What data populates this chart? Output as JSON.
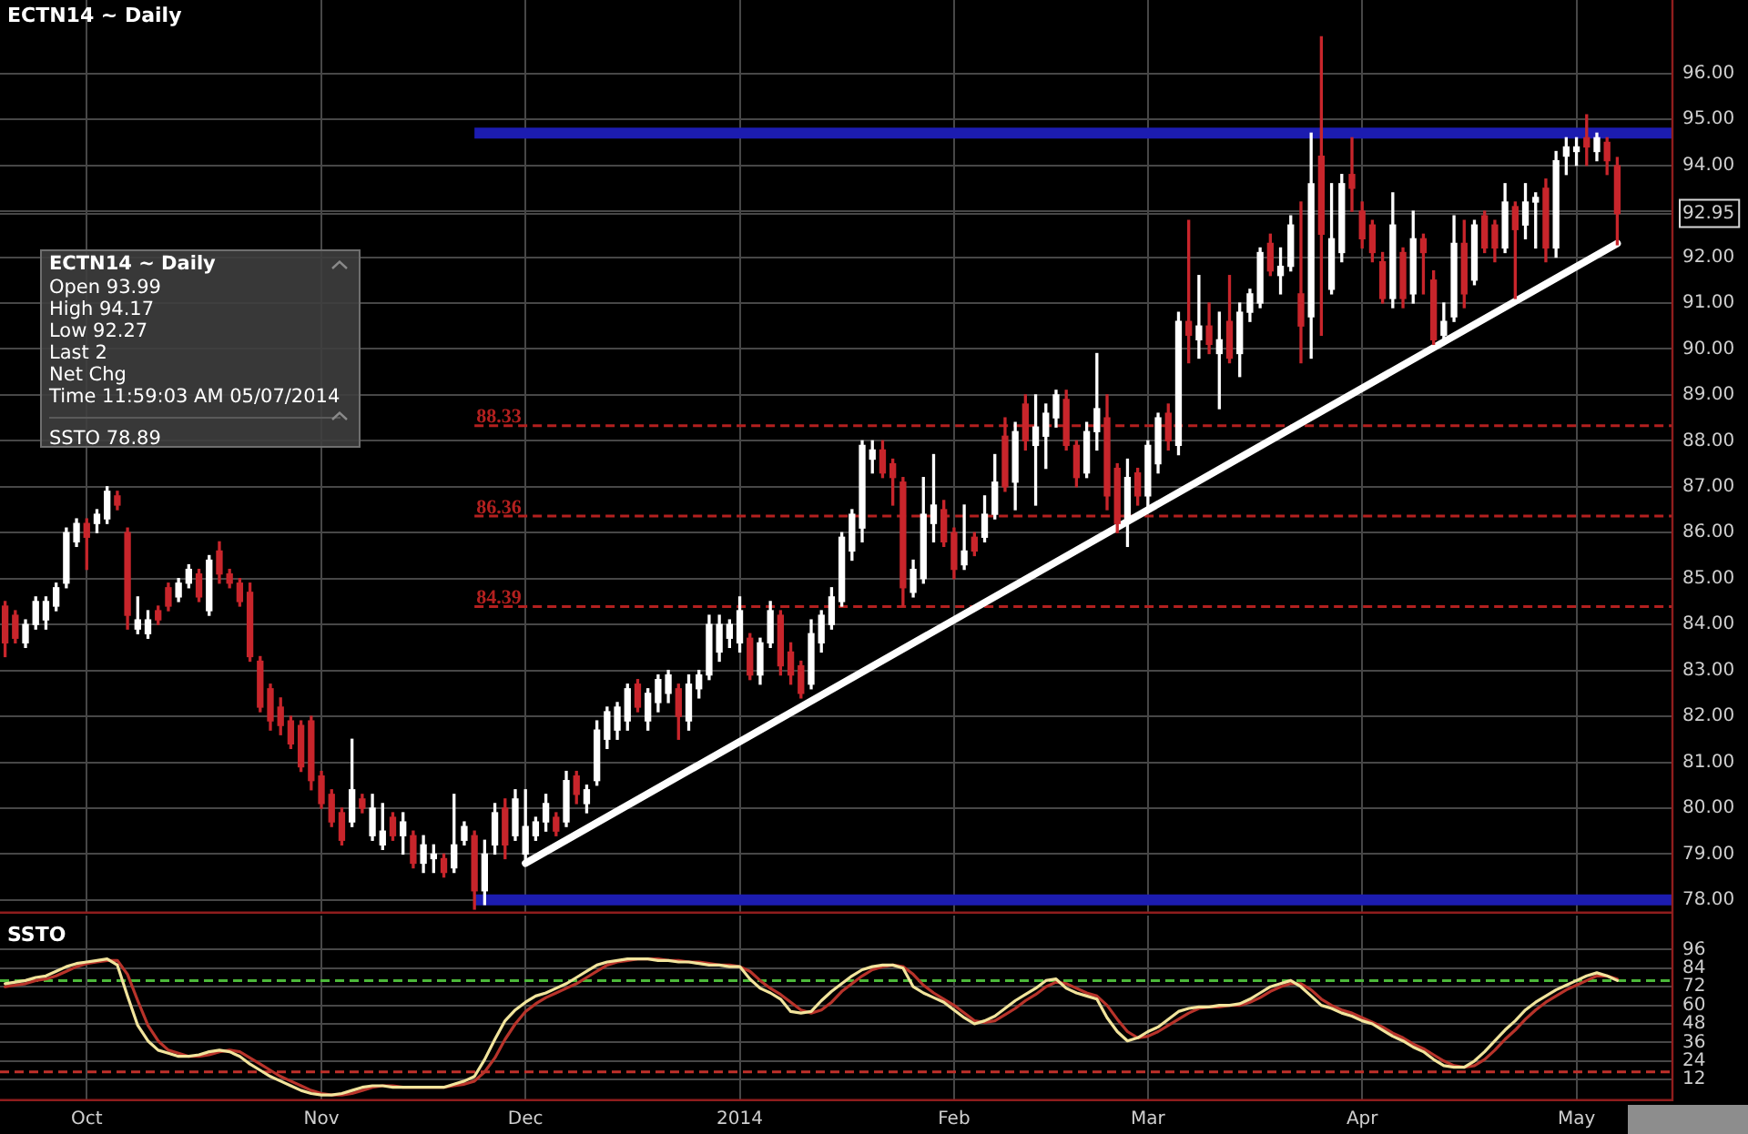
{
  "chart_data": [
    {
      "type": "candlestick",
      "title": "ECTN14 ~ Daily",
      "categories": [
        null,
        null,
        null,
        null,
        null,
        null,
        null,
        null,
        null,
        null,
        null,
        null,
        null,
        null,
        null,
        null,
        null,
        null,
        null,
        null,
        null,
        null,
        null,
        null,
        null,
        null,
        null,
        null,
        null,
        null,
        null,
        null,
        null,
        null,
        null,
        null,
        null,
        null,
        null,
        null,
        null,
        null,
        null,
        null,
        null,
        null,
        null,
        null,
        null,
        null,
        null,
        null,
        null,
        null,
        null,
        null,
        null,
        null,
        null,
        null,
        null,
        null,
        null,
        null,
        null,
        null,
        null,
        null,
        null,
        null,
        null,
        null,
        null,
        null,
        null,
        null,
        null,
        null,
        null,
        null,
        null,
        null,
        null,
        null,
        null,
        null,
        null,
        null,
        null,
        null,
        null,
        null,
        null,
        null,
        null,
        null,
        null,
        null,
        null,
        null,
        null,
        null,
        null,
        null,
        null,
        null,
        null,
        null,
        null,
        null,
        null,
        null,
        null,
        null,
        null,
        null,
        null,
        null,
        null,
        null,
        null,
        null,
        null,
        null,
        null,
        null,
        null,
        null,
        null,
        null,
        null,
        null,
        null,
        null,
        null,
        null,
        null,
        null,
        null,
        null,
        null,
        null,
        null,
        null,
        null,
        null,
        null,
        null,
        null,
        null,
        null,
        null,
        null,
        null,
        null,
        null,
        null,
        null,
        null
      ],
      "ohlc": [
        [
          84.4,
          84.5,
          83.3,
          83.6
        ],
        [
          84.2,
          84.3,
          83.6,
          83.7
        ],
        [
          83.6,
          84.1,
          83.5,
          84.0
        ],
        [
          84.0,
          84.6,
          83.9,
          84.5
        ],
        [
          84.1,
          84.6,
          83.9,
          84.5
        ],
        [
          84.4,
          84.9,
          84.3,
          84.8
        ],
        [
          84.9,
          86.1,
          84.8,
          86.0
        ],
        [
          85.8,
          86.3,
          85.7,
          86.2
        ],
        [
          86.2,
          86.3,
          85.2,
          85.9
        ],
        [
          86.2,
          86.5,
          86.0,
          86.4
        ],
        [
          86.3,
          87.0,
          86.2,
          86.9
        ],
        [
          86.8,
          86.9,
          86.5,
          86.6
        ],
        [
          86.0,
          86.1,
          83.9,
          84.2
        ],
        [
          83.9,
          84.6,
          83.8,
          84.1
        ],
        [
          83.8,
          84.3,
          83.7,
          84.1
        ],
        [
          84.3,
          84.4,
          84.0,
          84.1
        ],
        [
          84.8,
          84.9,
          84.3,
          84.4
        ],
        [
          84.6,
          85.0,
          84.5,
          84.9
        ],
        [
          84.9,
          85.3,
          84.8,
          85.2
        ],
        [
          85.1,
          85.2,
          84.5,
          84.6
        ],
        [
          84.3,
          85.5,
          84.2,
          85.4
        ],
        [
          85.6,
          85.8,
          84.9,
          85.1
        ],
        [
          85.1,
          85.2,
          84.8,
          84.9
        ],
        [
          84.9,
          85.0,
          84.4,
          84.5
        ],
        [
          84.7,
          84.9,
          83.2,
          83.3
        ],
        [
          83.2,
          83.3,
          82.1,
          82.2
        ],
        [
          82.6,
          82.7,
          81.7,
          81.9
        ],
        [
          82.2,
          82.4,
          81.6,
          81.8
        ],
        [
          81.9,
          82.0,
          81.3,
          81.4
        ],
        [
          81.8,
          81.9,
          80.8,
          80.9
        ],
        [
          81.9,
          82.0,
          80.4,
          80.6
        ],
        [
          80.7,
          80.8,
          80.0,
          80.1
        ],
        [
          80.3,
          80.4,
          79.6,
          79.7
        ],
        [
          79.9,
          80.0,
          79.2,
          79.3
        ],
        [
          79.7,
          81.5,
          79.6,
          80.4
        ],
        [
          80.2,
          80.3,
          79.9,
          80.0
        ],
        [
          79.4,
          80.3,
          79.3,
          80.0
        ],
        [
          79.2,
          80.1,
          79.1,
          79.5
        ],
        [
          79.8,
          79.9,
          79.3,
          79.4
        ],
        [
          79.4,
          79.9,
          79.0,
          79.7
        ],
        [
          79.4,
          79.5,
          78.7,
          78.8
        ],
        [
          78.8,
          79.4,
          78.6,
          79.2
        ],
        [
          78.9,
          79.2,
          78.6,
          79.0
        ],
        [
          78.9,
          79.0,
          78.5,
          78.6
        ],
        [
          78.7,
          80.3,
          78.6,
          79.2
        ],
        [
          79.3,
          79.7,
          79.2,
          79.6
        ],
        [
          79.4,
          79.5,
          77.8,
          78.2
        ],
        [
          78.2,
          79.3,
          77.9,
          79.0
        ],
        [
          79.2,
          80.1,
          79.0,
          79.9
        ],
        [
          80.0,
          80.2,
          78.9,
          79.2
        ],
        [
          79.4,
          80.4,
          79.3,
          80.2
        ],
        [
          79.0,
          80.4,
          78.8,
          79.6
        ],
        [
          79.4,
          79.8,
          79.3,
          79.7
        ],
        [
          79.7,
          80.3,
          79.5,
          80.1
        ],
        [
          79.8,
          79.9,
          79.4,
          79.5
        ],
        [
          79.7,
          80.8,
          79.6,
          80.6
        ],
        [
          80.7,
          80.8,
          80.1,
          80.3
        ],
        [
          80.1,
          80.5,
          79.9,
          80.4
        ],
        [
          80.6,
          81.9,
          80.5,
          81.7
        ],
        [
          81.5,
          82.2,
          81.3,
          82.1
        ],
        [
          81.7,
          82.3,
          81.5,
          82.2
        ],
        [
          81.9,
          82.7,
          81.7,
          82.6
        ],
        [
          82.7,
          82.8,
          82.1,
          82.2
        ],
        [
          81.9,
          82.6,
          81.7,
          82.5
        ],
        [
          82.3,
          82.9,
          82.1,
          82.8
        ],
        [
          82.5,
          83.0,
          82.3,
          82.9
        ],
        [
          82.6,
          82.7,
          81.5,
          82.0
        ],
        [
          81.9,
          82.9,
          81.7,
          82.7
        ],
        [
          82.6,
          83.0,
          82.4,
          82.9
        ],
        [
          82.9,
          84.2,
          82.8,
          84.0
        ],
        [
          83.4,
          84.2,
          83.2,
          84.0
        ],
        [
          83.7,
          84.1,
          83.5,
          84.0
        ],
        [
          83.6,
          84.6,
          83.4,
          84.3
        ],
        [
          83.7,
          83.8,
          82.8,
          82.9
        ],
        [
          82.9,
          83.7,
          82.7,
          83.6
        ],
        [
          83.6,
          84.5,
          83.5,
          84.3
        ],
        [
          84.2,
          84.3,
          82.9,
          83.1
        ],
        [
          83.4,
          83.6,
          82.7,
          82.9
        ],
        [
          83.1,
          83.2,
          82.4,
          82.5
        ],
        [
          82.7,
          84.1,
          82.6,
          83.8
        ],
        [
          83.6,
          84.3,
          83.4,
          84.2
        ],
        [
          84.0,
          84.8,
          83.9,
          84.6
        ],
        [
          84.5,
          86.0,
          84.4,
          85.9
        ],
        [
          85.6,
          86.5,
          85.4,
          86.4
        ],
        [
          86.1,
          88.0,
          85.8,
          87.9
        ],
        [
          87.6,
          88.0,
          87.3,
          87.8
        ],
        [
          87.8,
          88.0,
          87.2,
          87.3
        ],
        [
          87.5,
          87.6,
          86.6,
          87.2
        ],
        [
          87.1,
          87.2,
          84.4,
          84.8
        ],
        [
          84.7,
          85.4,
          84.6,
          85.2
        ],
        [
          85.0,
          87.2,
          84.9,
          86.4
        ],
        [
          86.2,
          87.7,
          85.8,
          86.6
        ],
        [
          86.5,
          86.7,
          85.7,
          85.8
        ],
        [
          86.0,
          86.1,
          85.0,
          85.2
        ],
        [
          85.3,
          86.6,
          85.2,
          85.6
        ],
        [
          85.9,
          86.0,
          85.5,
          85.6
        ],
        [
          85.9,
          86.8,
          85.8,
          86.4
        ],
        [
          86.4,
          87.7,
          86.3,
          87.1
        ],
        [
          88.1,
          88.5,
          86.9,
          87.0
        ],
        [
          87.1,
          88.4,
          86.5,
          88.2
        ],
        [
          88.8,
          89.0,
          87.8,
          88.0
        ],
        [
          87.9,
          89.0,
          86.6,
          88.3
        ],
        [
          88.1,
          88.8,
          87.4,
          88.6
        ],
        [
          88.5,
          89.1,
          88.3,
          89.0
        ],
        [
          88.9,
          89.1,
          87.8,
          87.9
        ],
        [
          87.9,
          88.0,
          87.0,
          87.2
        ],
        [
          87.3,
          88.4,
          87.2,
          88.2
        ],
        [
          88.2,
          89.9,
          87.8,
          88.7
        ],
        [
          88.5,
          89.0,
          86.5,
          86.8
        ],
        [
          87.4,
          87.5,
          86.0,
          86.2
        ],
        [
          86.3,
          87.6,
          85.7,
          87.2
        ],
        [
          87.3,
          87.4,
          86.6,
          86.8
        ],
        [
          86.8,
          88.0,
          86.5,
          87.9
        ],
        [
          87.5,
          88.6,
          87.3,
          88.5
        ],
        [
          88.6,
          88.8,
          87.8,
          88.0
        ],
        [
          87.9,
          90.8,
          87.7,
          90.6
        ],
        [
          90.6,
          92.8,
          89.7,
          90.3
        ],
        [
          90.2,
          91.6,
          89.8,
          90.5
        ],
        [
          90.5,
          91.0,
          89.9,
          90.1
        ],
        [
          89.9,
          90.8,
          88.7,
          90.2
        ],
        [
          90.6,
          91.6,
          89.7,
          89.8
        ],
        [
          89.9,
          91.0,
          89.4,
          90.8
        ],
        [
          90.8,
          91.3,
          90.6,
          91.2
        ],
        [
          91.0,
          92.2,
          90.9,
          92.1
        ],
        [
          92.3,
          92.5,
          91.6,
          91.7
        ],
        [
          91.6,
          92.2,
          91.2,
          91.8
        ],
        [
          91.8,
          92.9,
          91.7,
          92.7
        ],
        [
          91.2,
          93.2,
          89.7,
          90.5
        ],
        [
          90.7,
          94.7,
          89.8,
          93.6
        ],
        [
          94.2,
          96.8,
          90.3,
          92.5
        ],
        [
          91.3,
          93.6,
          91.2,
          92.4
        ],
        [
          92.1,
          93.8,
          91.9,
          93.6
        ],
        [
          93.8,
          94.6,
          93.0,
          93.5
        ],
        [
          93.0,
          93.2,
          92.2,
          92.4
        ],
        [
          92.7,
          92.8,
          91.9,
          92.1
        ],
        [
          91.9,
          92.1,
          91.0,
          91.1
        ],
        [
          91.1,
          93.4,
          90.9,
          92.7
        ],
        [
          92.1,
          92.2,
          90.9,
          91.1
        ],
        [
          91.2,
          93.0,
          91.0,
          92.4
        ],
        [
          92.4,
          92.5,
          91.2,
          92.1
        ],
        [
          91.5,
          91.7,
          90.1,
          90.2
        ],
        [
          90.3,
          91.0,
          90.1,
          90.6
        ],
        [
          90.7,
          92.9,
          90.6,
          92.3
        ],
        [
          92.3,
          92.8,
          90.9,
          91.2
        ],
        [
          91.5,
          92.8,
          91.4,
          92.7
        ],
        [
          92.9,
          93.0,
          92.1,
          92.2
        ],
        [
          92.7,
          92.8,
          91.9,
          92.2
        ],
        [
          92.2,
          93.6,
          92.1,
          93.2
        ],
        [
          93.1,
          93.2,
          91.1,
          92.6
        ],
        [
          92.7,
          93.6,
          92.4,
          93.2
        ],
        [
          93.2,
          93.4,
          92.2,
          93.3
        ],
        [
          93.5,
          93.7,
          91.9,
          92.2
        ],
        [
          92.2,
          94.3,
          92.0,
          94.1
        ],
        [
          94.2,
          94.6,
          93.8,
          94.4
        ],
        [
          94.3,
          94.6,
          94.0,
          94.4
        ],
        [
          94.6,
          95.1,
          94.0,
          94.4
        ],
        [
          94.3,
          94.7,
          94.1,
          94.6
        ],
        [
          94.5,
          94.6,
          93.8,
          94.1
        ],
        [
          93.99,
          94.17,
          92.27,
          92.95
        ]
      ],
      "colors": [
        "#c8252b",
        "#c8252b",
        "#ffffff",
        "#ffffff",
        "#ffffff",
        "#ffffff",
        "#ffffff",
        "#ffffff",
        "#c8252b",
        "#ffffff",
        "#ffffff",
        "#c8252b",
        "#c8252b",
        "#ffffff",
        "#ffffff",
        "#c8252b",
        "#c8252b",
        "#ffffff",
        "#ffffff",
        "#c8252b",
        "#ffffff",
        "#c8252b",
        "#c8252b",
        "#c8252b",
        "#c8252b",
        "#c8252b",
        "#c8252b",
        "#c8252b",
        "#c8252b",
        "#c8252b",
        "#c8252b",
        "#c8252b",
        "#c8252b",
        "#c8252b",
        "#ffffff",
        "#c8252b",
        "#ffffff",
        "#ffffff",
        "#c8252b",
        "#ffffff",
        "#c8252b",
        "#ffffff",
        "#ffffff",
        "#c8252b",
        "#ffffff",
        "#ffffff",
        "#c8252b",
        "#ffffff",
        "#ffffff",
        "#c8252b",
        "#ffffff",
        "#ffffff",
        "#ffffff",
        "#ffffff",
        "#c8252b",
        "#ffffff",
        "#c8252b",
        "#ffffff",
        "#ffffff",
        "#ffffff",
        "#ffffff",
        "#ffffff",
        "#c8252b",
        "#ffffff",
        "#ffffff",
        "#ffffff",
        "#c8252b",
        "#ffffff",
        "#ffffff",
        "#ffffff",
        "#ffffff",
        "#ffffff",
        "#ffffff",
        "#c8252b",
        "#ffffff",
        "#ffffff",
        "#c8252b",
        "#c8252b",
        "#c8252b",
        "#ffffff",
        "#ffffff",
        "#ffffff",
        "#ffffff",
        "#ffffff",
        "#ffffff",
        "#ffffff",
        "#c8252b",
        "#c8252b",
        "#c8252b",
        "#ffffff",
        "#ffffff",
        "#ffffff",
        "#c8252b",
        "#c8252b",
        "#ffffff",
        "#c8252b",
        "#ffffff",
        "#ffffff",
        "#c8252b",
        "#ffffff",
        "#c8252b",
        "#ffffff",
        "#ffffff",
        "#ffffff",
        "#c8252b",
        "#c8252b",
        "#ffffff",
        "#ffffff",
        "#c8252b",
        "#c8252b",
        "#ffffff",
        "#c8252b",
        "#ffffff",
        "#ffffff",
        "#c8252b",
        "#ffffff",
        "#c8252b",
        "#ffffff",
        "#c8252b",
        "#ffffff",
        "#c8252b",
        "#ffffff",
        "#ffffff",
        "#ffffff",
        "#c8252b",
        "#ffffff",
        "#ffffff",
        "#c8252b",
        "#ffffff",
        "#c8252b",
        "#ffffff",
        "#ffffff",
        "#c8252b",
        "#c8252b",
        "#c8252b",
        "#c8252b",
        "#ffffff",
        "#c8252b",
        "#ffffff",
        "#c8252b",
        "#c8252b",
        "#ffffff",
        "#ffffff",
        "#c8252b",
        "#ffffff",
        "#c8252b",
        "#c8252b",
        "#ffffff",
        "#c8252b",
        "#ffffff",
        "#ffffff",
        "#c8252b",
        "#ffffff",
        "#ffffff",
        "#ffffff",
        "#c8252b",
        "#ffffff",
        "#c8252b",
        "#c8252b"
      ],
      "series": [
        {
          "type": "line",
          "color": "#ffffff",
          "values": [
            null,
            null,
            null,
            null,
            null,
            null,
            null,
            null,
            null,
            null,
            null,
            null,
            null,
            null,
            null,
            null,
            null,
            null,
            null,
            null,
            null,
            null,
            null,
            null,
            null,
            null,
            null,
            null,
            null,
            null,
            null,
            null,
            null,
            null,
            null,
            null,
            null,
            null,
            null,
            null,
            null,
            null,
            null,
            null,
            null,
            null,
            null,
            null,
            null,
            null,
            null,
            78.8,
            null,
            null,
            null,
            null,
            null,
            null,
            null,
            null,
            null,
            null,
            null,
            null,
            null,
            null,
            null,
            null,
            null,
            null,
            null,
            null,
            null,
            null,
            null,
            null,
            null,
            null,
            null,
            null,
            null,
            null,
            null,
            null,
            null,
            null,
            null,
            null,
            null,
            null,
            null,
            null,
            null,
            null,
            null,
            null,
            null,
            null,
            null,
            null,
            null,
            null,
            null,
            null,
            null,
            null,
            null,
            null,
            null,
            null,
            null,
            null,
            null,
            null,
            null,
            null,
            null,
            null,
            null,
            null,
            null,
            null,
            null,
            null,
            null,
            null,
            null,
            null,
            null,
            null,
            null,
            null,
            null,
            null,
            null,
            null,
            null,
            null,
            null,
            null,
            null,
            null,
            null,
            null,
            null,
            null,
            null,
            null,
            null,
            null,
            null,
            null,
            null,
            null,
            null,
            null,
            null,
            null,
            92.3
          ]
        }
      ],
      "ylim": [
        77.7,
        97.6
      ],
      "yticks": [
        {
          "value": 78,
          "label": "78.00"
        },
        {
          "value": 79,
          "label": "79.00"
        },
        {
          "value": 80,
          "label": "80.00"
        },
        {
          "value": 81,
          "label": "81.00"
        },
        {
          "value": 82,
          "label": "82.00"
        },
        {
          "value": 83,
          "label": "83.00"
        },
        {
          "value": 84,
          "label": "84.00"
        },
        {
          "value": 85,
          "label": "85.00"
        },
        {
          "value": 86,
          "label": "86.00"
        },
        {
          "value": 87,
          "label": "87.00"
        },
        {
          "value": 88,
          "label": "88.00"
        },
        {
          "value": 89,
          "label": "89.00"
        },
        {
          "value": 90,
          "label": "90.00"
        },
        {
          "value": 91,
          "label": "91.00"
        },
        {
          "value": 92,
          "label": "92.00"
        },
        {
          "value": 92.95,
          "label": "92.95"
        },
        {
          "value": 93,
          "label": null
        },
        {
          "value": 94,
          "label": "94.00"
        },
        {
          "value": 95,
          "label": "95.00"
        },
        {
          "value": 96,
          "label": "96.00"
        }
      ],
      "ref_lines": [
        {
          "axis": "y",
          "value": 94.7,
          "color": "#1c1cb0",
          "line_style": "solid"
        },
        {
          "axis": "y",
          "value": 88.33,
          "label": "88.33",
          "color": "#b3201f",
          "line_style": "dashed"
        },
        {
          "axis": "y",
          "value": 86.36,
          "label": "86.36",
          "color": "#b3201f",
          "line_style": "dashed"
        },
        {
          "axis": "y",
          "value": 84.39,
          "label": "84.39",
          "color": "#b3201f",
          "line_style": "dashed"
        },
        {
          "axis": "y",
          "value": 78.0,
          "color": "#1c1cb0",
          "line_style": "solid"
        }
      ],
      "grid": true,
      "tick_labels": "y",
      "marker": "none",
      "line_style": "solid"
    },
    {
      "type": "other",
      "title": "ECTN14 ~ Daily",
      "annotations": [
        "Open 93.99",
        "High 94.17",
        "Low 92.27",
        "Last 2",
        "Net Chg",
        "Time 11:59:03 AM 05/07/2014",
        "SSTO 78.89"
      ]
    },
    {
      "type": "line",
      "title": "SSTO",
      "categories": [
        null,
        null,
        null,
        null,
        null,
        null,
        null,
        null,
        "Oct",
        null,
        null,
        null,
        null,
        null,
        null,
        null,
        null,
        null,
        null,
        null,
        null,
        null,
        null,
        null,
        null,
        null,
        null,
        null,
        null,
        null,
        null,
        "Nov",
        null,
        null,
        null,
        null,
        null,
        null,
        null,
        null,
        null,
        null,
        null,
        null,
        null,
        null,
        null,
        null,
        null,
        null,
        null,
        "Dec",
        null,
        null,
        null,
        null,
        null,
        null,
        null,
        null,
        null,
        null,
        null,
        null,
        null,
        null,
        null,
        null,
        null,
        null,
        null,
        null,
        "2014",
        null,
        null,
        null,
        null,
        null,
        null,
        null,
        null,
        null,
        null,
        null,
        null,
        null,
        null,
        null,
        null,
        null,
        null,
        null,
        null,
        "Feb",
        null,
        null,
        null,
        null,
        null,
        null,
        null,
        null,
        null,
        null,
        null,
        null,
        null,
        null,
        null,
        null,
        null,
        null,
        "Mar",
        null,
        null,
        null,
        null,
        null,
        null,
        null,
        null,
        null,
        null,
        null,
        null,
        null,
        null,
        null,
        null,
        null,
        null,
        null,
        null,
        "Apr",
        null,
        null,
        null,
        null,
        null,
        null,
        null,
        null,
        null,
        null,
        null,
        null,
        null,
        null,
        null,
        null,
        null,
        null,
        null,
        null,
        "May",
        null,
        null,
        null,
        null
      ],
      "series": [
        {
          "color": "#b8332a",
          "values": [
            72,
            73,
            74,
            76,
            77,
            79,
            82,
            85,
            87,
            88,
            89,
            89,
            80,
            63,
            47,
            37,
            31,
            29,
            27,
            27,
            28,
            30,
            31,
            30,
            26,
            22,
            18,
            14,
            11,
            8,
            5,
            3,
            2,
            2,
            3,
            5,
            7,
            8,
            8,
            7,
            7,
            7,
            7,
            7,
            8,
            9,
            11,
            17,
            26,
            38,
            48,
            56,
            61,
            65,
            68,
            71,
            74,
            78,
            82,
            86,
            88,
            89,
            90,
            90,
            90,
            89,
            89,
            88,
            88,
            87,
            86,
            86,
            85,
            82,
            76,
            71,
            67,
            62,
            57,
            55,
            57,
            62,
            69,
            74,
            79,
            83,
            85,
            86,
            85,
            80,
            73,
            68,
            64,
            60,
            55,
            50,
            49,
            50,
            54,
            58,
            63,
            67,
            72,
            75,
            74,
            71,
            68,
            66,
            60,
            51,
            43,
            39,
            40,
            43,
            47,
            51,
            55,
            58,
            59,
            59,
            60,
            60,
            62,
            65,
            69,
            72,
            74,
            74,
            70,
            64,
            60,
            57,
            55,
            52,
            49,
            46,
            42,
            39,
            35,
            32,
            28,
            24,
            21,
            20,
            21,
            25,
            31,
            38,
            44,
            51,
            57,
            62,
            66,
            70,
            73,
            76,
            79,
            79,
            77
          ]
        },
        {
          "color": "#f2e49c",
          "values": [
            74,
            75,
            76,
            78,
            79,
            82,
            85,
            87,
            88,
            89,
            90,
            86,
            66,
            47,
            37,
            31,
            29,
            27,
            27,
            28,
            30,
            31,
            30,
            27,
            22,
            18,
            14,
            11,
            8,
            5,
            3,
            2,
            2,
            3,
            5,
            7,
            8,
            8,
            7,
            7,
            7,
            7,
            7,
            7,
            9,
            11,
            14,
            25,
            38,
            50,
            57,
            62,
            66,
            68,
            71,
            74,
            78,
            82,
            86,
            88,
            89,
            90,
            90,
            90,
            89,
            89,
            88,
            88,
            87,
            86,
            86,
            85,
            85,
            77,
            71,
            68,
            64,
            56,
            55,
            56,
            63,
            69,
            74,
            79,
            83,
            85,
            86,
            86,
            84,
            72,
            68,
            65,
            62,
            57,
            52,
            48,
            50,
            53,
            58,
            63,
            67,
            71,
            76,
            77,
            71,
            68,
            66,
            64,
            52,
            43,
            37,
            39,
            43,
            46,
            51,
            56,
            58,
            59,
            59,
            60,
            60,
            61,
            64,
            68,
            72,
            74,
            76,
            72,
            66,
            60,
            58,
            55,
            53,
            50,
            48,
            44,
            40,
            37,
            33,
            30,
            25,
            21,
            20,
            20,
            24,
            30,
            37,
            44,
            50,
            57,
            62,
            66,
            70,
            73,
            76,
            79,
            81,
            79,
            76
          ]
        }
      ],
      "ylim": [
        -2,
        118
      ],
      "yticks": [
        12,
        24,
        36,
        48,
        60,
        72,
        84,
        96
      ],
      "ref_lines": [
        {
          "axis": "y",
          "value": 76,
          "color": "#4cb83a",
          "line_style": "dashed"
        },
        {
          "axis": "y",
          "value": 17,
          "color": "#c0302a",
          "line_style": "dashed"
        }
      ],
      "grid": true,
      "marker": "none",
      "line_style": "solid"
    }
  ]
}
